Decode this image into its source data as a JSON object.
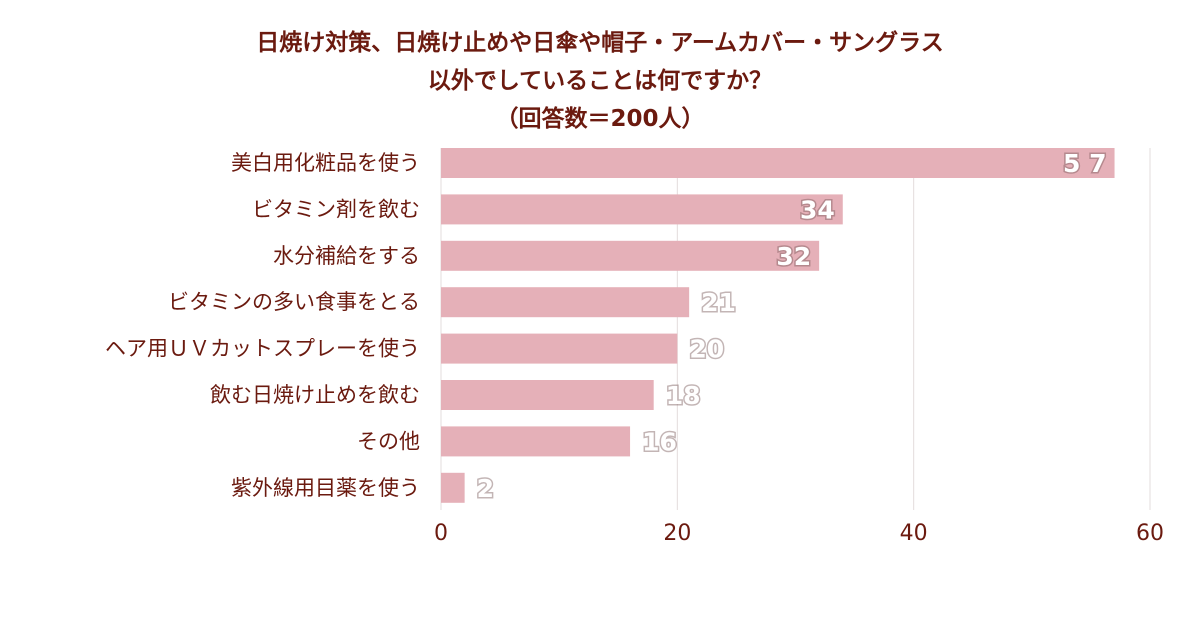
{
  "chart_data": {
    "type": "bar",
    "orientation": "horizontal",
    "title_lines": [
      "日焼け対策、日焼け止めや日傘や帽子・アームカバー・サングラス",
      "以外でしていることは何ですか？",
      "（回答数＝200人）"
    ],
    "categories": [
      "美白用化粧品を使う",
      "ビタミン剤を飲む",
      "水分補給をする",
      "ビタミンの多い食事をとる",
      "ヘア用ＵＶカットスプレーを使う",
      "飲む日焼け止めを飲む",
      "その他",
      "紫外線用目薬を使う"
    ],
    "values": [
      57,
      34,
      32,
      21,
      20,
      18,
      16,
      2
    ],
    "data_labels": [
      "5 7",
      "34",
      "32",
      "21",
      "20",
      "18",
      "16",
      "2"
    ],
    "xlim": [
      0,
      60
    ],
    "xticks": [
      "0",
      "20",
      "40",
      "60"
    ],
    "grid": true,
    "colors": {
      "bar": "#e5b0b8",
      "text": "#6b1a0f",
      "grid": "#e3dcdc"
    }
  }
}
